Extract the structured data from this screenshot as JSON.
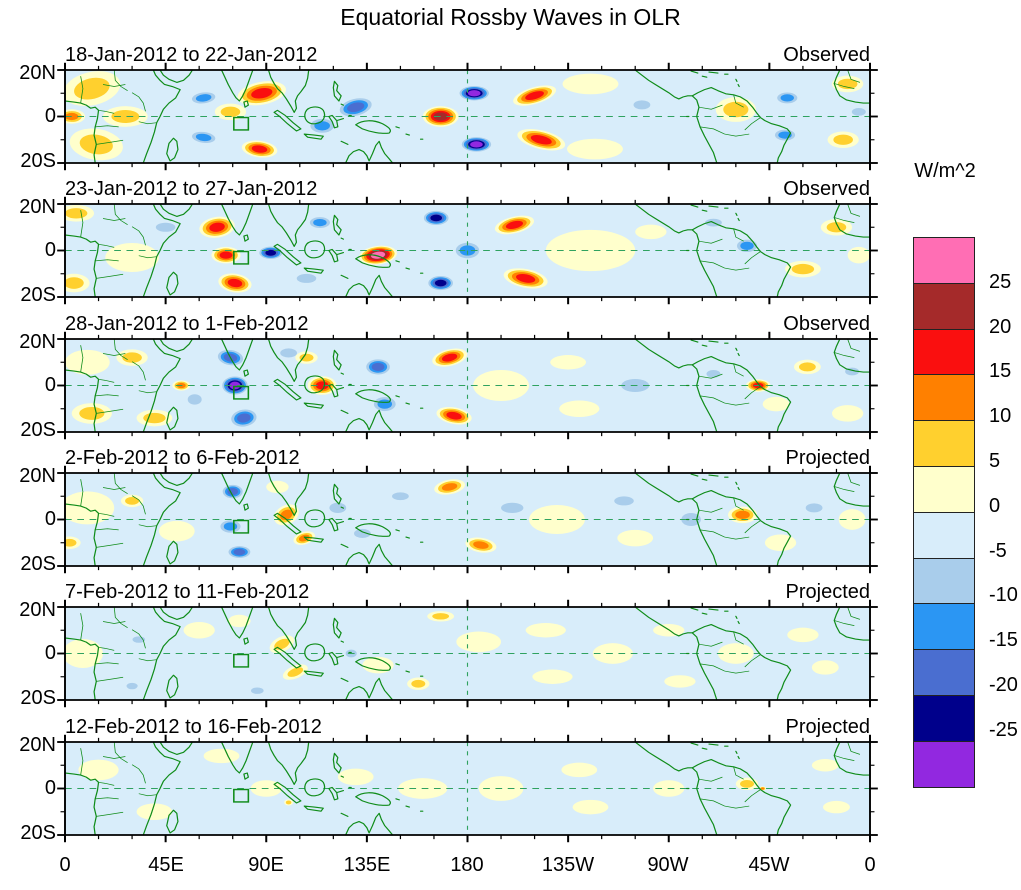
{
  "title": "Equatorial Rossby Waves in OLR",
  "colorbar": {
    "title": "W/m^2",
    "labels": [
      "25",
      "20",
      "15",
      "10",
      "5",
      "0",
      "-5",
      "-10",
      "-15",
      "-20",
      "-25"
    ],
    "colors": [
      "#ff6eb4",
      "#a52a2a",
      "#fa0f0f",
      "#ff8000",
      "#ffd02e",
      "#ffffcc",
      "#d8edfa",
      "#a9cdeb",
      "#2b96f3",
      "#4a6ed0",
      "#00008b",
      "#9228e0"
    ]
  },
  "axes": {
    "x_ticks": [
      "0",
      "45E",
      "90E",
      "135E",
      "180",
      "135W",
      "90W",
      "45W",
      "0"
    ],
    "y_ticks": [
      "20N",
      "0",
      "20S"
    ]
  },
  "map_style": {
    "coast_green": "#0f8c19",
    "equator_green": "#2fa25f",
    "background": "#d8edfa"
  },
  "chart_data": {
    "type": "heatmap",
    "title": "Equatorial Rossby Waves in OLR",
    "units": "W/m^2",
    "lon_range": [
      0,
      360
    ],
    "lat_range": [
      -20,
      20
    ],
    "contour_levels": [
      -25,
      -20,
      -15,
      -10,
      -5,
      0,
      5,
      10,
      15,
      20,
      25
    ],
    "anomaly_format": [
      "lon_deg_east",
      "lat_deg",
      "peak_wm2",
      "radius_lon",
      "radius_lat",
      "tilt_deg"
    ],
    "panels": [
      {
        "title": "18-Jan-2012 to 22-Jan-2012",
        "type": "Observed",
        "anomalies": [
          [
            235,
            14,
            3,
            25,
            10,
            0
          ],
          [
            237,
            -14,
            3,
            25,
            10,
            0
          ],
          [
            300,
            3,
            7,
            18,
            12,
            0
          ],
          [
            12,
            12,
            10,
            26,
            16,
            -15
          ],
          [
            14,
            -12,
            10,
            24,
            15,
            10
          ],
          [
            27,
            0,
            7,
            20,
            10,
            0
          ],
          [
            3,
            0,
            12,
            12,
            7,
            0
          ],
          [
            74,
            2,
            8,
            14,
            8,
            0
          ],
          [
            62,
            8,
            -13,
            14,
            7,
            -8
          ],
          [
            62,
            -9,
            -13,
            14,
            7,
            8
          ],
          [
            88,
            10,
            17,
            22,
            11,
            -12
          ],
          [
            87,
            -14,
            17,
            16,
            8,
            8
          ],
          [
            130,
            4,
            -17,
            18,
            10,
            -15
          ],
          [
            115,
            -4,
            -12,
            14,
            9,
            0
          ],
          [
            168,
            0,
            22,
            16,
            10,
            0
          ],
          [
            183,
            10,
            -27,
            15,
            8,
            0
          ],
          [
            184,
            -12,
            -27,
            15,
            8,
            0
          ],
          [
            210,
            9,
            17,
            20,
            8,
            -18
          ],
          [
            213,
            -10,
            17,
            22,
            9,
            15
          ],
          [
            258,
            5,
            -8,
            12,
            7,
            0
          ],
          [
            323,
            8,
            -13,
            12,
            7,
            0
          ],
          [
            322,
            -8,
            -13,
            12,
            7,
            0
          ],
          [
            350,
            14,
            8,
            14,
            8,
            0
          ],
          [
            348,
            -10,
            8,
            14,
            8,
            0
          ],
          [
            355,
            2,
            -8,
            10,
            6,
            0
          ]
        ]
      },
      {
        "title": "23-Jan-2012 to 27-Jan-2012",
        "type": "Observed",
        "anomalies": [
          [
            30,
            -3,
            4,
            24,
            14,
            0
          ],
          [
            235,
            0,
            3,
            40,
            20,
            0
          ],
          [
            355,
            -2,
            5,
            10,
            8,
            0
          ],
          [
            5,
            16,
            8,
            16,
            8,
            0
          ],
          [
            4,
            -14,
            10,
            14,
            9,
            0
          ],
          [
            45,
            10,
            -7,
            14,
            7,
            0
          ],
          [
            68,
            10,
            16,
            16,
            10,
            -10
          ],
          [
            72,
            -2,
            16,
            13,
            8,
            0
          ],
          [
            76,
            -14,
            18,
            15,
            9,
            10
          ],
          [
            92,
            -1,
            -22,
            12,
            7,
            0
          ],
          [
            114,
            12,
            -15,
            12,
            7,
            0
          ],
          [
            108,
            -12,
            -10,
            14,
            7,
            0
          ],
          [
            140,
            -2,
            27,
            17,
            9,
            -8
          ],
          [
            166,
            14,
            -23,
            13,
            8,
            0
          ],
          [
            168,
            -14,
            -23,
            13,
            8,
            0
          ],
          [
            180,
            0,
            -12,
            14,
            10,
            0
          ],
          [
            201,
            11,
            17,
            18,
            8,
            -15
          ],
          [
            206,
            -12,
            19,
            20,
            9,
            12
          ],
          [
            262,
            8,
            5,
            14,
            7,
            0
          ],
          [
            290,
            12,
            -8,
            12,
            6,
            0
          ],
          [
            305,
            2,
            -13,
            12,
            8,
            0
          ],
          [
            330,
            -8,
            8,
            16,
            8,
            0
          ],
          [
            345,
            10,
            8,
            14,
            8,
            0
          ]
        ]
      },
      {
        "title": "28-Jan-2012 to 1-Feb-2012",
        "type": "Observed",
        "anomalies": [
          [
            10,
            10,
            5,
            20,
            12,
            0
          ],
          [
            195,
            0,
            3,
            25,
            15,
            0
          ],
          [
            230,
            -10,
            4,
            18,
            8,
            0
          ],
          [
            225,
            10,
            5,
            16,
            7,
            0
          ],
          [
            350,
            -12,
            5,
            14,
            8,
            0
          ],
          [
            318,
            -8,
            5,
            12,
            7,
            0
          ],
          [
            12,
            -12,
            8,
            18,
            10,
            0
          ],
          [
            30,
            12,
            8,
            14,
            8,
            0
          ],
          [
            40,
            -14,
            8,
            16,
            8,
            0
          ],
          [
            52,
            0,
            12,
            8,
            5,
            0
          ],
          [
            58,
            -6,
            -8,
            10,
            8,
            0
          ],
          [
            74,
            12,
            -18,
            14,
            9,
            10
          ],
          [
            80,
            -14,
            -18,
            14,
            10,
            -10
          ],
          [
            76,
            0,
            -27,
            13,
            10,
            0
          ],
          [
            100,
            14,
            -10,
            12,
            7,
            0
          ],
          [
            108,
            12,
            8,
            10,
            6,
            0
          ],
          [
            115,
            0,
            19,
            13,
            9,
            0
          ],
          [
            140,
            8,
            -16,
            13,
            9,
            0
          ],
          [
            143,
            -8,
            -13,
            13,
            9,
            0
          ],
          [
            172,
            12,
            18,
            16,
            8,
            -15
          ],
          [
            174,
            -13,
            18,
            16,
            8,
            12
          ],
          [
            255,
            0,
            -6,
            20,
            10,
            0
          ],
          [
            290,
            5,
            -7,
            10,
            6,
            0
          ],
          [
            310,
            0,
            16,
            11,
            6,
            0
          ],
          [
            332,
            8,
            8,
            12,
            7,
            0
          ],
          [
            352,
            6,
            -8,
            10,
            6,
            0
          ]
        ]
      },
      {
        "title": "2-Feb-2012 to 6-Feb-2012",
        "type": "Projected",
        "anomalies": [
          [
            10,
            5,
            4,
            24,
            16,
            0
          ],
          [
            50,
            -5,
            4,
            16,
            10,
            0
          ],
          [
            220,
            0,
            3,
            25,
            14,
            0
          ],
          [
            255,
            -8,
            3,
            16,
            8,
            0
          ],
          [
            320,
            -10,
            4,
            14,
            8,
            0
          ],
          [
            352,
            0,
            4,
            12,
            10,
            0
          ],
          [
            2,
            -10,
            8,
            10,
            6,
            0
          ],
          [
            30,
            8,
            8,
            10,
            6,
            0
          ],
          [
            95,
            14,
            5,
            10,
            6,
            0
          ],
          [
            75,
            12,
            -17,
            11,
            8,
            0
          ],
          [
            74,
            -3,
            -12,
            12,
            8,
            0
          ],
          [
            78,
            -14,
            -17,
            12,
            7,
            0
          ],
          [
            99,
            2,
            13,
            12,
            9,
            -35
          ],
          [
            107,
            -8,
            12,
            10,
            6,
            -20
          ],
          [
            122,
            5,
            -8,
            12,
            8,
            0
          ],
          [
            133,
            -6,
            -8,
            12,
            7,
            0
          ],
          [
            150,
            10,
            -7,
            12,
            6,
            0
          ],
          [
            172,
            14,
            13,
            14,
            7,
            -12
          ],
          [
            186,
            -11,
            12,
            14,
            7,
            10
          ],
          [
            200,
            5,
            -6,
            16,
            8,
            0
          ],
          [
            250,
            8,
            -6,
            14,
            7,
            0
          ],
          [
            280,
            0,
            -6,
            14,
            10,
            0
          ],
          [
            303,
            2,
            13,
            13,
            8,
            0
          ],
          [
            335,
            5,
            -7,
            12,
            7,
            0
          ]
        ]
      },
      {
        "title": "7-Feb-2012 to 11-Feb-2012",
        "type": "Projected",
        "anomalies": [
          [
            8,
            0,
            4,
            18,
            14,
            0
          ],
          [
            60,
            10,
            4,
            14,
            8,
            0
          ],
          [
            78,
            14,
            4,
            10,
            6,
            0
          ],
          [
            140,
            -5,
            4,
            14,
            8,
            0
          ],
          [
            185,
            5,
            3,
            20,
            10,
            0
          ],
          [
            215,
            10,
            3,
            18,
            7,
            0
          ],
          [
            218,
            -10,
            3,
            18,
            7,
            0
          ],
          [
            245,
            0,
            3,
            18,
            10,
            0
          ],
          [
            270,
            10,
            3,
            14,
            6,
            0
          ],
          [
            275,
            -12,
            3,
            14,
            6,
            0
          ],
          [
            300,
            0,
            3,
            16,
            10,
            0
          ],
          [
            330,
            8,
            3,
            14,
            7,
            0
          ],
          [
            340,
            -6,
            3,
            12,
            7,
            0
          ],
          [
            33,
            6,
            -7,
            9,
            5,
            0
          ],
          [
            30,
            -14,
            -7,
            8,
            5,
            0
          ],
          [
            86,
            -16,
            -7,
            9,
            5,
            0
          ],
          [
            128,
            0,
            -8,
            8,
            6,
            0
          ],
          [
            97,
            4,
            9,
            12,
            7,
            -30
          ],
          [
            103,
            -8,
            9,
            12,
            6,
            -25
          ],
          [
            168,
            16,
            8,
            12,
            5,
            0
          ],
          [
            158,
            -13,
            9,
            10,
            6,
            0
          ]
        ]
      },
      {
        "title": "12-Feb-2012 to 16-Feb-2012",
        "type": "Projected",
        "anomalies": [
          [
            15,
            8,
            3,
            18,
            10,
            0
          ],
          [
            40,
            -10,
            3,
            16,
            8,
            0
          ],
          [
            70,
            14,
            3,
            16,
            7,
            0
          ],
          [
            90,
            0,
            3,
            14,
            8,
            0
          ],
          [
            130,
            5,
            3,
            16,
            8,
            0
          ],
          [
            160,
            0,
            3,
            22,
            10,
            0
          ],
          [
            195,
            0,
            3,
            20,
            12,
            0
          ],
          [
            230,
            8,
            3,
            16,
            7,
            0
          ],
          [
            235,
            -8,
            3,
            16,
            7,
            0
          ],
          [
            270,
            0,
            3,
            14,
            8,
            0
          ],
          [
            340,
            10,
            3,
            12,
            6,
            0
          ],
          [
            345,
            -8,
            3,
            12,
            6,
            0
          ],
          [
            100,
            -6,
            7,
            4,
            3,
            0
          ],
          [
            305,
            2,
            6,
            10,
            6,
            0
          ],
          [
            312,
            0,
            11,
            3,
            2,
            0
          ]
        ]
      }
    ]
  }
}
